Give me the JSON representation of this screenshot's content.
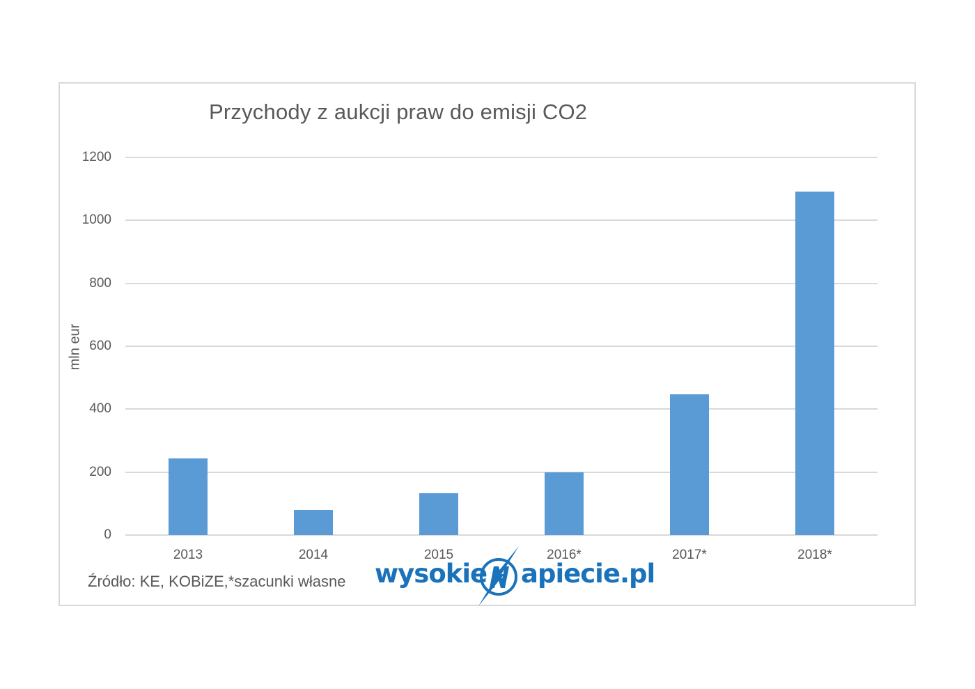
{
  "chart_data": {
    "type": "bar",
    "title": "Przychody z aukcji praw do emisji CO2",
    "xlabel": "",
    "ylabel": "mln eur",
    "categories": [
      "2013",
      "2014",
      "2015",
      "2016*",
      "2017*",
      "2018*"
    ],
    "values": [
      244,
      79,
      133,
      200,
      447,
      1092
    ],
    "ylim": [
      0,
      1200
    ],
    "yticks": [
      "0",
      "200",
      "400",
      "600",
      "800",
      "1000",
      "1200"
    ],
    "grid": true,
    "legend": null,
    "bar_color": "#5b9bd5",
    "annotations": [
      "Źródło: KE, KOBiZE,*szacunki własne"
    ]
  },
  "source_note": "Źródło: KE, KOBiZE,*szacunki własne",
  "logo": {
    "left_text": "wysokie",
    "mark_letter": "N",
    "right_text": "apiecie.pl",
    "color": "#1a72bb"
  }
}
